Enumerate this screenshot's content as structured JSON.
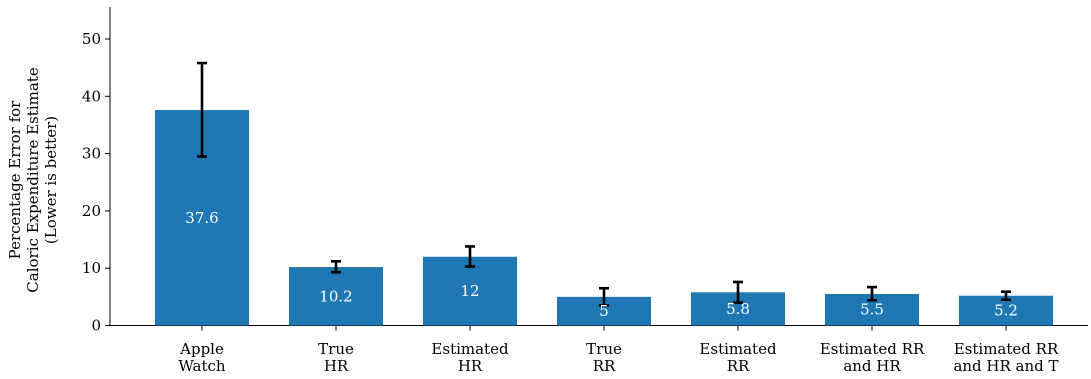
{
  "chart_data": {
    "type": "bar",
    "categories": [
      [
        "Apple",
        "Watch"
      ],
      [
        "True",
        "HR"
      ],
      [
        "Estimated",
        "HR"
      ],
      [
        "True",
        "RR"
      ],
      [
        "Estimated",
        "RR"
      ],
      [
        "Estimated RR",
        "and HR"
      ],
      [
        "Estimated RR",
        "and HR and T"
      ]
    ],
    "values": [
      37.6,
      10.2,
      12,
      5,
      5.8,
      5.5,
      5.2
    ],
    "value_labels": [
      "37.6",
      "10.2",
      "12",
      "5",
      "5.8",
      "5.5",
      "5.2"
    ],
    "error_low": [
      29.5,
      9.3,
      10.3,
      3.5,
      4.0,
      4.4,
      4.5
    ],
    "error_high": [
      45.8,
      11.2,
      13.8,
      6.5,
      7.6,
      6.7,
      5.9
    ],
    "ylabel": [
      "Percentage Error for",
      "Caloric Expenditure Estimate",
      "(Lower is better)"
    ],
    "ylim": [
      0,
      55
    ],
    "yticks": [
      0,
      10,
      20,
      30,
      40,
      50
    ],
    "grid": false,
    "bar_color": "#1f77b4",
    "error_color": "#000000",
    "label_color": "#ffffff"
  }
}
